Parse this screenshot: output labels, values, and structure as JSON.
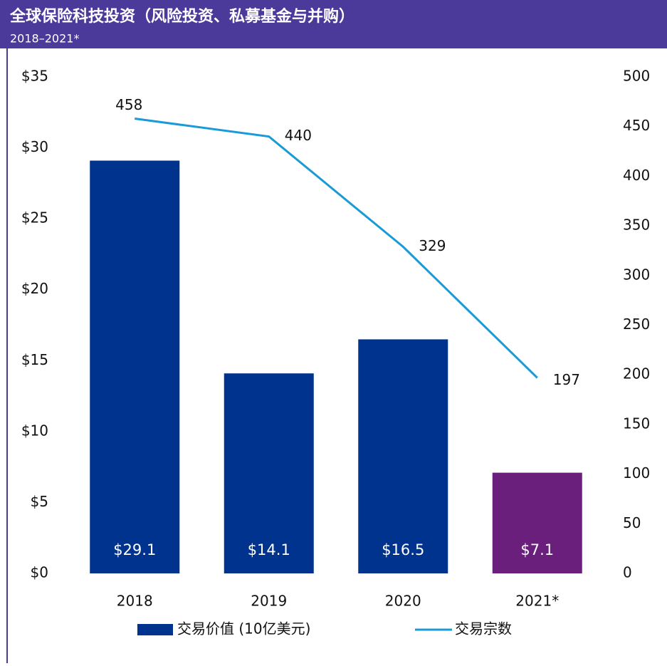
{
  "chart_data": {
    "type": "bar",
    "title": "全球保险科技投资（风险投资、私募基金与并购）",
    "subtitle": "2018–2021*",
    "categories": [
      "2018",
      "2019",
      "2020",
      "2021*"
    ],
    "series": [
      {
        "name": "交易价值 (10亿美元)",
        "type": "bar",
        "color": "#00338d",
        "colors": [
          "#00338d",
          "#00338d",
          "#00338d",
          "#6b1f7c"
        ],
        "values": [
          29.1,
          14.1,
          16.5,
          7.1
        ],
        "value_labels": [
          "$29.1",
          "$14.1",
          "$16.5",
          "$7.1"
        ]
      },
      {
        "name": "交易宗数",
        "type": "line",
        "axis": "y2",
        "color": "#1a9ad6",
        "values": [
          458,
          440,
          329,
          197
        ]
      }
    ],
    "ylim": [
      0,
      35
    ],
    "yticks": [
      {
        "value": 0,
        "label": "$0"
      },
      {
        "value": 5,
        "label": "$5"
      },
      {
        "value": 10,
        "label": "$10"
      },
      {
        "value": 15,
        "label": "$15"
      },
      {
        "value": 20,
        "label": "$20"
      },
      {
        "value": 25,
        "label": "$25"
      },
      {
        "value": 30,
        "label": "$30"
      },
      {
        "value": 35,
        "label": "$35"
      }
    ],
    "y2lim": [
      0,
      500
    ],
    "y2ticks": [
      0,
      50,
      100,
      150,
      200,
      250,
      300,
      350,
      400,
      450,
      500
    ],
    "legend": "bottom"
  }
}
